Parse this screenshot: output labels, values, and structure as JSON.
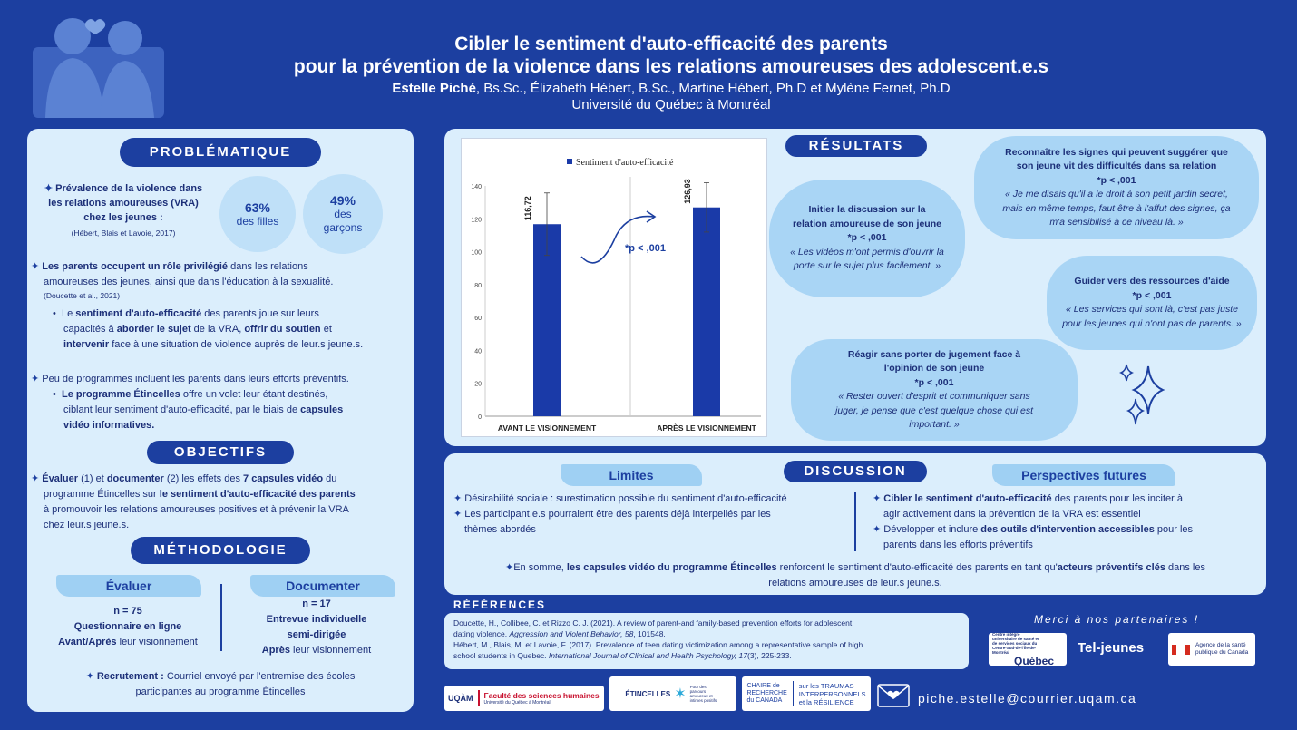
{
  "header": {
    "title_line1": "Cibler le sentiment d'auto-efficacité des parents",
    "title_line2": "pour la prévention de la violence dans les relations amoureuses des adolescent.e.s",
    "lead_author": "Estelle Piché",
    "other_authors": ", Bs.Sc., Élizabeth Hébert, B.Sc., Martine Hébert, Ph.D et Mylène Fernet, Ph.D",
    "university": "Université du Québec à Montréal"
  },
  "problematique": {
    "title": "PROBLÉMATIQUE",
    "prevalence_line1": "Prévalence de la violence dans",
    "prevalence_line2a": "les relations amoureuses (",
    "prevalence_vra": "VRA",
    "prevalence_line2b": ")",
    "prevalence_line3": "chez les jeunes :",
    "prevalence_ref": "(Hébert, Blais et Lavoie, 2017)",
    "stat_girls_value": "63%",
    "stat_girls_label": "des filles",
    "stat_boys_value": "49%",
    "stat_boys_label1": "des",
    "stat_boys_label2": "garçons",
    "parents_bold": "Les parents occupent un rôle privilégié",
    "parents_rest1": " dans les relations",
    "parents_line2": "amoureuses des jeunes, ainsi que dans l'éducation à la sexualité.",
    "parents_ref": "(Doucette et al., 2021)",
    "sub1_a": "Le ",
    "sub1_b": "sentiment d'auto-efficacité",
    "sub1_c": " des parents joue sur leurs",
    "sub1_d": "capacités à ",
    "sub1_e": "aborder le sujet",
    "sub1_f": " de la VRA, ",
    "sub1_g": "offrir du soutien",
    "sub1_h": " et",
    "sub1_i": "intervenir",
    "sub1_j": " face à une situation de violence auprès de leur.s jeune.s.",
    "programs": "Peu de programmes incluent les parents dans leurs efforts préventifs.",
    "sub2_a": "Le programme Étincelles",
    "sub2_b": " offre un volet leur étant destinés,",
    "sub2_c": "ciblant leur sentiment d'auto-efficacité, par le biais de ",
    "sub2_d": "capsules",
    "sub2_e": "vidéo informatives."
  },
  "objectifs": {
    "title": "OBJECTIFS",
    "a": "Évaluer",
    "b": " (1) et ",
    "c": "documenter",
    "d": " (2) les effets des ",
    "e": "7 capsules vidéo",
    "f": " du",
    "g": "programme Étincelles sur ",
    "h": "le sentiment d'auto-efficacité des parents",
    "i": "à promouvoir les relations amoureuses positives et à prévenir la VRA",
    "j": "chez leur.s jeune.s."
  },
  "methodologie": {
    "title": "MÉTHODOLOGIE",
    "eval_title": "Évaluer",
    "eval_n": "n = 75",
    "eval_method": "Questionnaire en ligne",
    "eval_when_a": "Avant",
    "eval_when_b": "/",
    "eval_when_c": "Après",
    "eval_when_d": " leur visionnement",
    "doc_title": "Documenter",
    "doc_n": "n = 17",
    "doc_method1": "Entrevue individuelle",
    "doc_method2": "semi-dirigée",
    "doc_when_a": "Après",
    "doc_when_b": " leur visionnement",
    "recruit_a": "Recrutement :",
    "recruit_b": " Courriel envoyé par l'entremise des écoles",
    "recruit_c": "participantes au programme Étincelles"
  },
  "chart_data": {
    "type": "bar",
    "categories": [
      "AVANT LE VISIONNEMENT",
      "APRÈS LE VISIONNEMENT"
    ],
    "series": [
      {
        "name": "Sentiment d'auto-efficacité",
        "values": [
          116.72,
          126.93
        ]
      }
    ],
    "value_labels": [
      "116,72",
      "126,93"
    ],
    "error_bars": [
      19,
      15
    ],
    "ylim": [
      0,
      140
    ],
    "yticks": [
      "0",
      "20",
      "40",
      "60",
      "80",
      "100",
      "120",
      "140"
    ],
    "annotation": "*p < ,001",
    "color": "#1a3aa8"
  },
  "resultats": {
    "title": "RÉSULTATS",
    "b1_h1": "Initier la discussion sur la",
    "b1_h2": "relation amoureuse de son jeune",
    "b1_p": "*p < ,001",
    "b1_q1": "« Les vidéos m'ont permis d'ouvrir la",
    "b1_q2": "porte sur le sujet plus facilement. »",
    "b2_h1": "Reconnaître les signes qui peuvent suggérer que",
    "b2_h2": "son jeune vit des difficultés dans sa relation",
    "b2_p": "*p < ,001",
    "b2_q1": "« Je me disais qu'il a le droit à son petit jardin secret,",
    "b2_q2": "mais en même temps, faut être à l'affut des signes, ça",
    "b2_q3": "m'a sensibilisé à ce niveau là. »",
    "b3_h1": "Guider vers des ressources d'aide",
    "b3_p": "*p < ,001",
    "b3_q1": "« Les services qui sont là, c'est pas juste",
    "b3_q2": "pour les jeunes qui n'ont pas de parents. »",
    "b4_h1": "Réagir sans porter de jugement face à",
    "b4_h2": "l'opinion de son jeune",
    "b4_p": "*p < ,001",
    "b4_q1": "« Rester ouvert d'esprit et communiquer sans",
    "b4_q2": "juger, je pense que c'est quelque chose qui est",
    "b4_q3": "important. »"
  },
  "discussion": {
    "title": "DISCUSSION",
    "limits_title": "Limites",
    "limit1": "Désirabilité sociale : surestimation possible du sentiment d'auto-efficacité",
    "limit2a": "Les participant.e.s pourraient être des parents déjà interpellés par les",
    "limit2b": "thèmes abordés",
    "persp_title": "Perspectives futures",
    "persp1a": "Cibler le sentiment d'auto-efficacité",
    "persp1b": " des parents pour les inciter à",
    "persp1c": "agir activement dans la prévention de la VRA est essentiel",
    "persp2a": "Développer et inclure ",
    "persp2b": "des outils d'intervention accessibles",
    "persp2c": " pour les",
    "persp2d": "parents dans les efforts préventifs",
    "concl_a": "En somme, ",
    "concl_b": "les capsules vidéo du programme Étincelles",
    "concl_c": " renforcent le sentiment d'auto-efficacité des parents en tant qu'",
    "concl_d": "acteurs préventifs clés",
    "concl_e": " dans les",
    "concl_f": "relations amoureuses de leur.s jeune.s."
  },
  "references": {
    "title": "RÉFÉRENCES",
    "r1a": "Doucette, H., Collibee, C. et Rizzo C. J. (2021). A review of parent-and family-based prevention efforts for adolescent",
    "r1b": "dating violence. ",
    "r1c": "Aggression and Violent Behavior, 58",
    "r1d": ", 101548.",
    "r2a": "Hébert, M., Blais, M. et Lavoie, F. (2017). Prevalence of teen dating victimization among a representative sample of high",
    "r2b": "school students in Quebec. ",
    "r2c": "International Journal of Clinical and Health Psychology, 17",
    "r2d": "(3), 225-233."
  },
  "partners": {
    "thanks": "Merci à nos partenaires !",
    "ciusss": "Centre intégré universitaire de santé et de services sociaux du Centre-Sud-de-l'Île-de-Montréal",
    "quebec": "Québec",
    "teljeunes": "Tel-jeunes",
    "phac1": "Agence de la santé",
    "phac2": "publique du Canada",
    "uqam": "UQÀM",
    "fsh1": "Faculté des sciences humaines",
    "fsh2": "Université du Québec à Montréal",
    "etincelles": "ÉTINCELLES",
    "etincelles_sub": "Pour des parcours amoureux et intimes positifs",
    "chaire1": "CHAIRE de",
    "chaire2": "RECHERCHE",
    "chaire3": "du CANADA",
    "chaire4": "sur les TRAUMAS",
    "chaire5": "INTERPERSONNELS",
    "chaire6": "et la RÉSILIENCE",
    "email": "piche.estelle@courrier.uqam.ca"
  }
}
